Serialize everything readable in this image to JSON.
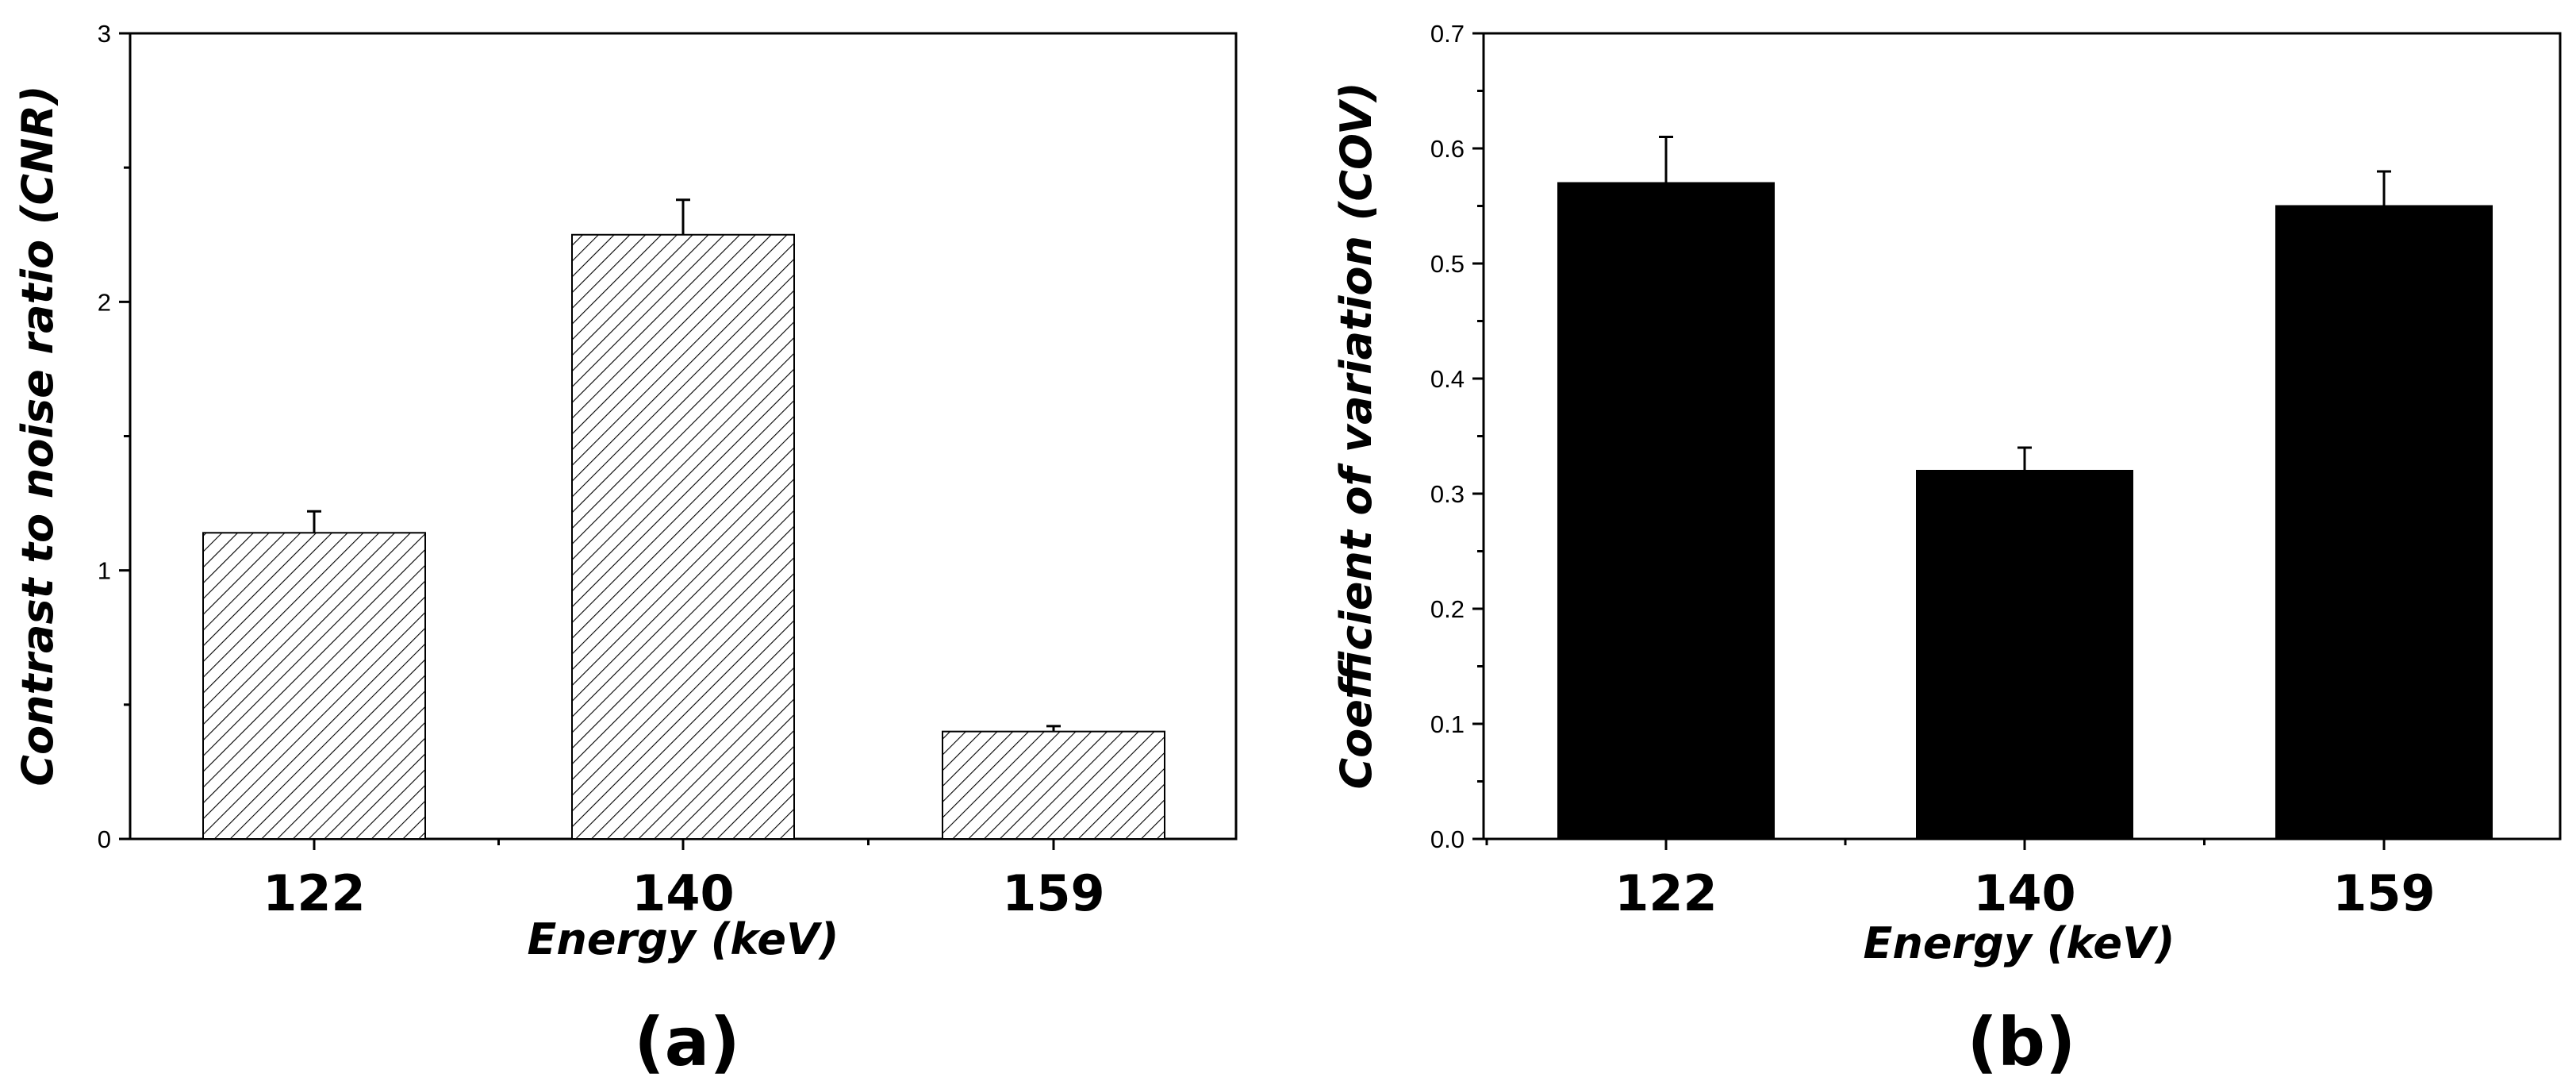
{
  "chart_data": [
    {
      "type": "bar",
      "panel_label": "(a)",
      "categories": [
        "122",
        "140",
        "159"
      ],
      "values": [
        1.14,
        2.25,
        0.4
      ],
      "errors": [
        0.08,
        0.13,
        0.02
      ],
      "xlabel": "Energy (keV)",
      "ylabel": "Contrast to noise ratio (CNR)",
      "ylim": [
        0,
        3
      ],
      "yticks": [
        "0",
        "1",
        "2",
        "3"
      ],
      "ytick_values": [
        0,
        1,
        2,
        3
      ],
      "fill": "hatched",
      "bar_color": "#000000",
      "grid": false
    },
    {
      "type": "bar",
      "panel_label": "(b)",
      "categories": [
        "122",
        "140",
        "159"
      ],
      "values": [
        0.57,
        0.32,
        0.55
      ],
      "errors": [
        0.04,
        0.02,
        0.03
      ],
      "xlabel": "Energy (keV)",
      "ylabel": "Coefficient of variation (COV)",
      "ylim": [
        0,
        0.7
      ],
      "yticks": [
        "0.0",
        "0.1",
        "0.2",
        "0.3",
        "0.4",
        "0.5",
        "0.6",
        "0.7"
      ],
      "ytick_values": [
        0,
        0.1,
        0.2,
        0.3,
        0.4,
        0.5,
        0.6,
        0.7
      ],
      "fill": "solid",
      "bar_color": "#000000",
      "grid": false
    }
  ]
}
